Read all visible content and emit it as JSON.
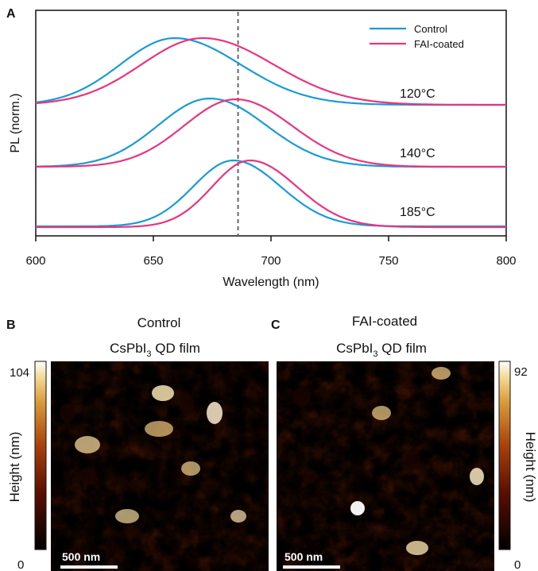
{
  "panel_a": {
    "label": "A",
    "chart_data": {
      "type": "line",
      "xlabel": "Wavelength (nm)",
      "ylabel": "PL (norm.)",
      "xlim": [
        600,
        800
      ],
      "xticks": [
        "600",
        "650",
        "700",
        "750",
        "800"
      ],
      "reference_line_x": 686,
      "legend": {
        "placement": "top-right"
      },
      "colors": {
        "Control": "#1a9bd7",
        "FAI-coated": "#e8357e"
      },
      "series": [
        {
          "name": "Control",
          "temperature": "120°C",
          "peak_nm": 659,
          "width_left": 23,
          "width_right": 28,
          "peak_y": 48,
          "base_y": 132
        },
        {
          "name": "FAI-coated",
          "temperature": "120°C",
          "peak_nm": 671,
          "width_left": 26,
          "width_right": 30,
          "peak_y": 48,
          "base_y": 132
        },
        {
          "name": "Control",
          "temperature": "140°C",
          "peak_nm": 674,
          "width_left": 22,
          "width_right": 24,
          "peak_y": 124,
          "base_y": 210
        },
        {
          "name": "FAI-coated",
          "temperature": "140°C",
          "peak_nm": 685,
          "width_left": 22,
          "width_right": 24,
          "peak_y": 125,
          "base_y": 210
        },
        {
          "name": "Control",
          "temperature": "185°C",
          "peak_nm": 684,
          "width_left": 17,
          "width_right": 20,
          "peak_y": 202,
          "base_y": 285
        },
        {
          "name": "FAI-coated",
          "temperature": "185°C",
          "peak_nm": 691,
          "width_left": 16,
          "width_right": 20,
          "peak_y": 202,
          "base_y": 286
        }
      ],
      "temperature_labels": [
        "120°C",
        "140°C",
        "185°C"
      ]
    }
  },
  "panel_b": {
    "label": "B",
    "title_line1": "Control",
    "title_line2": "CsPbI",
    "title_sub": "3",
    "title_suffix": " QD film",
    "scale_bar": "500 nm"
  },
  "panel_c": {
    "label": "C",
    "title_line1": "FAI-coated",
    "title_line2": "CsPbI",
    "title_sub": "3",
    "title_suffix": " QD film",
    "scale_bar": "500 nm"
  },
  "colorbar_left": {
    "max": "104",
    "min": "0",
    "label": "Height (nm)"
  },
  "colorbar_right": {
    "max": "92",
    "min": "0",
    "label": "Height (nm)"
  }
}
